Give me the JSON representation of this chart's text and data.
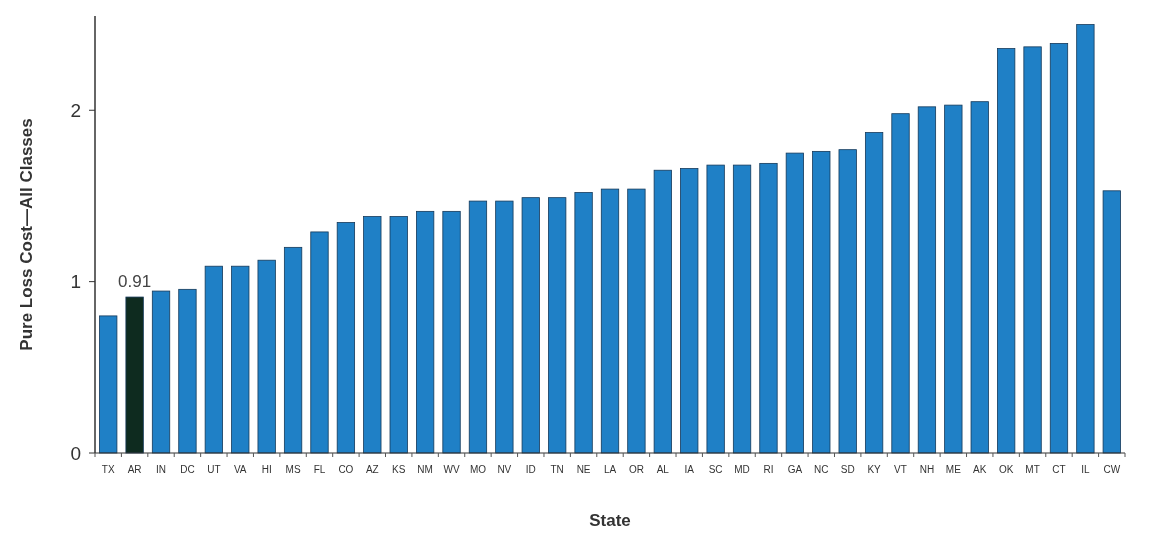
{
  "chart_data": {
    "type": "bar",
    "xlabel": "State",
    "ylabel": "Pure Loss Cost—All Classes",
    "categories": [
      "TX",
      "AR",
      "IN",
      "DC",
      "UT",
      "VA",
      "HI",
      "MS",
      "FL",
      "CO",
      "AZ",
      "KS",
      "NM",
      "WV",
      "MO",
      "NV",
      "ID",
      "TN",
      "NE",
      "LA",
      "OR",
      "AL",
      "IA",
      "SC",
      "MD",
      "RI",
      "GA",
      "NC",
      "SD",
      "KY",
      "VT",
      "NH",
      "ME",
      "AK",
      "OK",
      "MT",
      "CT",
      "IL",
      "CW"
    ],
    "values": [
      0.8,
      0.91,
      0.945,
      0.955,
      1.09,
      1.09,
      1.125,
      1.2,
      1.29,
      1.345,
      1.38,
      1.38,
      1.41,
      1.41,
      1.47,
      1.47,
      1.49,
      1.49,
      1.52,
      1.54,
      1.54,
      1.65,
      1.66,
      1.68,
      1.68,
      1.69,
      1.75,
      1.76,
      1.77,
      1.87,
      1.98,
      2.02,
      2.03,
      2.05,
      2.36,
      2.37,
      2.39,
      2.5,
      1.53
    ],
    "colors": [
      "#1f80c6",
      "#0e2b1f",
      "#1f80c6",
      "#1f80c6",
      "#1f80c6",
      "#1f80c6",
      "#1f80c6",
      "#1f80c6",
      "#1f80c6",
      "#1f80c6",
      "#1f80c6",
      "#1f80c6",
      "#1f80c6",
      "#1f80c6",
      "#1f80c6",
      "#1f80c6",
      "#1f80c6",
      "#1f80c6",
      "#1f80c6",
      "#1f80c6",
      "#1f80c6",
      "#1f80c6",
      "#1f80c6",
      "#1f80c6",
      "#1f80c6",
      "#1f80c6",
      "#1f80c6",
      "#1f80c6",
      "#1f80c6",
      "#1f80c6",
      "#1f80c6",
      "#1f80c6",
      "#1f80c6",
      "#1f80c6",
      "#1f80c6",
      "#1f80c6",
      "#1f80c6",
      "#1f80c6",
      "#1f80c6"
    ],
    "value_labels": [
      null,
      "0.91",
      null,
      null,
      null,
      null,
      null,
      null,
      null,
      null,
      null,
      null,
      null,
      null,
      null,
      null,
      null,
      null,
      null,
      null,
      null,
      null,
      null,
      null,
      null,
      null,
      null,
      null,
      null,
      null,
      null,
      null,
      null,
      null,
      null,
      null,
      null,
      null,
      null
    ],
    "ylim": [
      0,
      2.55
    ],
    "yticks": [
      0,
      1,
      2
    ],
    "grid": false
  }
}
